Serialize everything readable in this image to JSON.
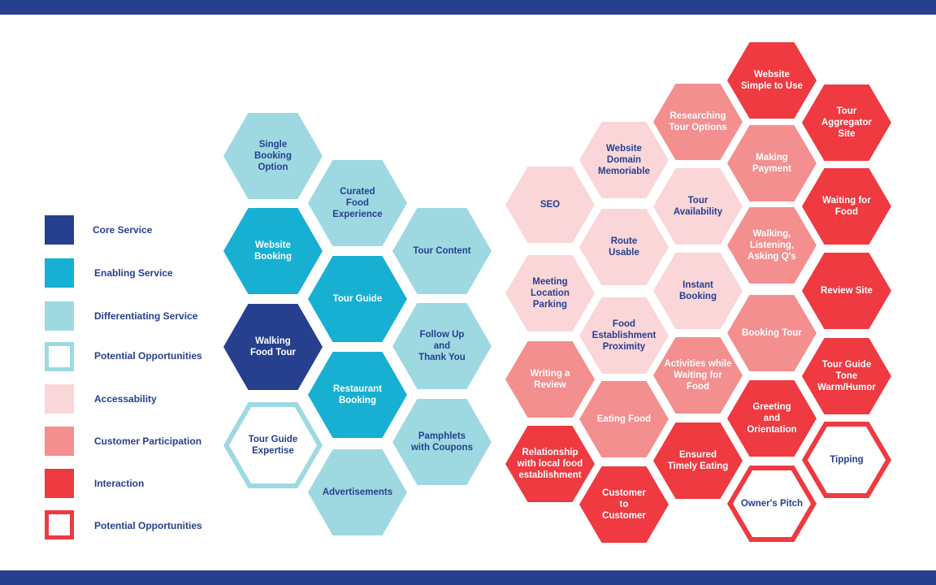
{
  "colors": {
    "core": "#273f8f",
    "enabling": "#17b0d3",
    "differentiating": "#9ed9e2",
    "accessibility": "#fad6d8",
    "participation": "#f38f8e",
    "interaction": "#ee3a40",
    "bar": "#273f8f"
  },
  "legend": [
    {
      "label": "Core Service",
      "color": "#273f8f",
      "outline": false
    },
    {
      "label": "Enabling Service",
      "color": "#17b0d3",
      "outline": false
    },
    {
      "label": "Differentiating Service",
      "color": "#9ed9e2",
      "outline": false
    },
    {
      "label": "Potential Opportunities",
      "color": "#9ed9e2",
      "outline": true
    },
    {
      "label": "Accessability",
      "color": "#fad6d8",
      "outline": false
    },
    {
      "label": "Customer Participation",
      "color": "#f38f8e",
      "outline": false
    },
    {
      "label": "Interaction",
      "color": "#ee3a40",
      "outline": false
    },
    {
      "label": "Potential Opportunities",
      "color": "#ee3a40",
      "outline": true
    }
  ],
  "service_hexes": [
    {
      "label": "Single\nBooking\nOption",
      "category": "differentiating"
    },
    {
      "label": "Curated\nFood\nExperience",
      "category": "differentiating"
    },
    {
      "label": "Website\nBooking",
      "category": "enabling"
    },
    {
      "label": "Tour Content",
      "category": "differentiating"
    },
    {
      "label": "Tour Guide",
      "category": "enabling"
    },
    {
      "label": "Walking\nFood Tour",
      "category": "core"
    },
    {
      "label": "Follow Up\nand\nThank You",
      "category": "differentiating"
    },
    {
      "label": "Restaurant\nBooking",
      "category": "enabling"
    },
    {
      "label": "Tour Guide\nExpertise",
      "category": "differentiating",
      "outline": true
    },
    {
      "label": "Pamphlets\nwith Coupons",
      "category": "differentiating"
    },
    {
      "label": "Advertisements",
      "category": "differentiating"
    }
  ],
  "interaction_hexes": [
    {
      "label": "Website\nSimple to Use",
      "category": "interaction"
    },
    {
      "label": "Researching\nTour Options",
      "category": "participation"
    },
    {
      "label": "Tour\nAggregator\nSite",
      "category": "interaction"
    },
    {
      "label": "Website\nDomain\nMemoriable",
      "category": "accessibility"
    },
    {
      "label": "Making\nPayment",
      "category": "participation"
    },
    {
      "label": "SEO",
      "category": "accessibility"
    },
    {
      "label": "Tour\nAvailability",
      "category": "accessibility"
    },
    {
      "label": "Waiting for Food",
      "category": "interaction"
    },
    {
      "label": "Route\nUsable",
      "category": "accessibility"
    },
    {
      "label": "Walking,\nListening,\nAsking Q's",
      "category": "participation"
    },
    {
      "label": "Meeting\nLocation\nParking",
      "category": "accessibility"
    },
    {
      "label": "Instant\nBooking",
      "category": "accessibility"
    },
    {
      "label": "Review Site",
      "category": "interaction"
    },
    {
      "label": "Food\nEstablishment\nProximity",
      "category": "accessibility"
    },
    {
      "label": "Booking Tour",
      "category": "participation"
    },
    {
      "label": "Writing a Review",
      "category": "participation"
    },
    {
      "label": "Activities while\nWaiting for Food",
      "category": "participation"
    },
    {
      "label": "Tour Guide Tone\nWarm/Humor",
      "category": "interaction"
    },
    {
      "label": "Eating Food",
      "category": "participation"
    },
    {
      "label": "Greeting\nand\nOrientation",
      "category": "interaction"
    },
    {
      "label": "Relationship\nwith local food\nestablishment",
      "category": "interaction"
    },
    {
      "label": "Ensured\nTimely Eating",
      "category": "interaction"
    },
    {
      "label": "Tipping",
      "category": "interaction",
      "outline": true
    },
    {
      "label": "Customer\nto\nCustomer",
      "category": "interaction"
    },
    {
      "label": "Owner's Pitch",
      "category": "interaction",
      "outline": true
    }
  ]
}
